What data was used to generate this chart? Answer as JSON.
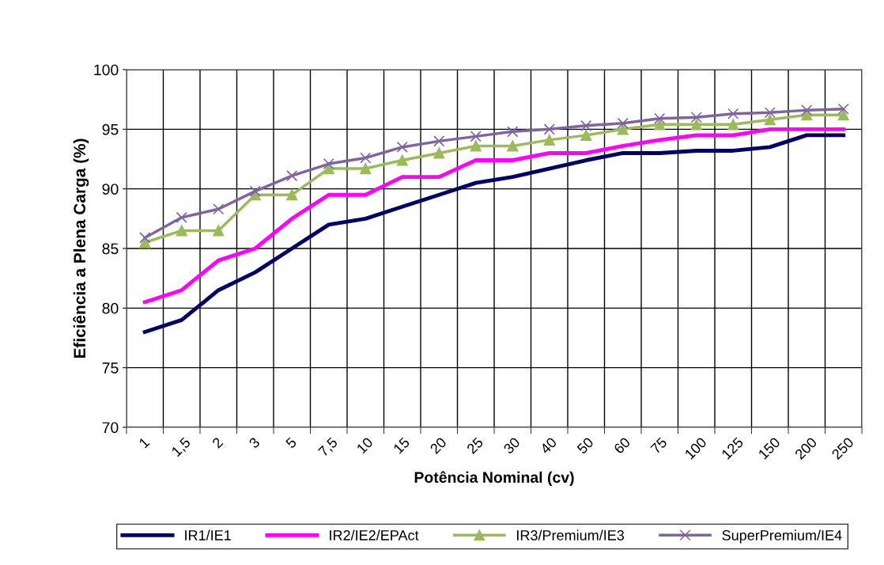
{
  "chart_data": {
    "type": "line",
    "xlabel": "Potência Nominal (cv)",
    "ylabel": "Eficiência a Plena Carga (%)",
    "categories": [
      "1",
      "1,5",
      "2",
      "3",
      "5",
      "7,5",
      "10",
      "15",
      "20",
      "25",
      "30",
      "40",
      "50",
      "60",
      "75",
      "100",
      "125",
      "150",
      "200",
      "250"
    ],
    "series": [
      {
        "name": "IR1/IE1",
        "color": "#000066",
        "marker": "none",
        "values": [
          78,
          79,
          81.5,
          83,
          85,
          87,
          87.5,
          88.5,
          89.5,
          90.5,
          91,
          91.7,
          92.4,
          93,
          93,
          93.2,
          93.2,
          93.5,
          94.5,
          94.5
        ]
      },
      {
        "name": "IR2/IE2/EPAct",
        "color": "#ff00ff",
        "marker": "none",
        "values": [
          80.5,
          81.5,
          84,
          85,
          87.5,
          89.5,
          89.5,
          91,
          91,
          92.4,
          92.4,
          93,
          93,
          93.6,
          94.1,
          94.5,
          94.5,
          95,
          95,
          95
        ]
      },
      {
        "name": "IR3/Premium/IE3",
        "color": "#9bbb59",
        "marker": "triangle",
        "values": [
          85.5,
          86.5,
          86.5,
          89.5,
          89.5,
          91.7,
          91.7,
          92.4,
          93,
          93.6,
          93.6,
          94.1,
          94.5,
          95,
          95.4,
          95.4,
          95.4,
          95.8,
          96.2,
          96.2
        ]
      },
      {
        "name": "SuperPremium/IE4",
        "color": "#8064a2",
        "marker": "cross",
        "values": [
          85.9,
          87.6,
          88.3,
          89.8,
          91.1,
          92.1,
          92.6,
          93.5,
          94.0,
          94.4,
          94.8,
          95.0,
          95.3,
          95.5,
          95.9,
          96.0,
          96.3,
          96.4,
          96.6,
          96.7
        ]
      }
    ],
    "ylim": [
      70,
      100
    ],
    "yticks": [
      70,
      75,
      80,
      85,
      90,
      95,
      100
    ],
    "grid": true,
    "legend": "bottom",
    "line_style": "solid"
  }
}
